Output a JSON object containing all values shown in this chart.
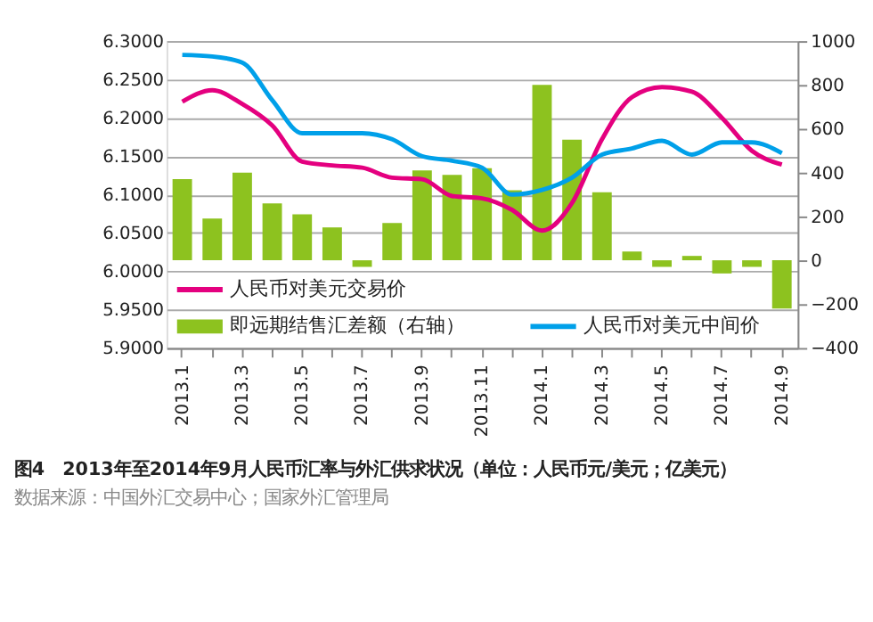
{
  "chart_data": {
    "type": "line",
    "title": "图4　2013年至2014年9月人民币汇率与外汇供求状况（单位：人民币元/美元；亿美元）",
    "annotations": [
      "数据来源：中国外汇交易中心；国家外汇管理局"
    ],
    "categories": [
      "2013.1",
      null,
      "2013.3",
      null,
      "2013.5",
      null,
      "2013.7",
      null,
      "2013.9",
      null,
      "2013.11",
      null,
      "2014.1",
      null,
      "2014.3",
      null,
      "2014.5",
      null,
      "2014.7",
      null,
      "2014.9"
    ],
    "series": [
      {
        "name": "人民币对美元交易价",
        "color": "#e4007f",
        "values": [
          6.221,
          6.236,
          6.218,
          6.19,
          6.143,
          6.138,
          6.135,
          6.122,
          6.12,
          6.098,
          6.095,
          6.08,
          6.053,
          6.089,
          6.172,
          6.227,
          6.24,
          6.234,
          6.2,
          6.157,
          6.139
        ]
      },
      {
        "name": "即远期结售汇差额（右轴）",
        "type": "bar",
        "axis": "y2",
        "color": "#8dc21f",
        "values": [
          370,
          190,
          400,
          260,
          210,
          150,
          -30,
          170,
          410,
          390,
          420,
          320,
          800,
          550,
          310,
          40,
          -30,
          20,
          -60,
          -30,
          -220
        ]
      },
      {
        "name": "人民币对美元中间价",
        "color": "#00a0e9",
        "values": [
          6.282,
          6.28,
          6.272,
          6.223,
          6.18,
          6.18,
          6.18,
          6.172,
          6.15,
          6.144,
          6.135,
          6.1,
          6.106,
          6.122,
          6.152,
          6.16,
          6.17,
          6.152,
          6.168,
          6.168,
          6.154
        ]
      }
    ],
    "ylim": [
      5.9,
      6.3
    ],
    "yticks": [
      {
        "value": 5.9,
        "label": "5.9000"
      },
      {
        "value": 5.95,
        "label": "5.9500"
      },
      {
        "value": 6.0,
        "label": "6.0000"
      },
      {
        "value": 6.05,
        "label": "6.0500"
      },
      {
        "value": 6.1,
        "label": "6.1000"
      },
      {
        "value": 6.15,
        "label": "6.1500"
      },
      {
        "value": 6.2,
        "label": "6.2000"
      },
      {
        "value": 6.25,
        "label": "6.2500"
      },
      {
        "value": 6.3,
        "label": "6.3000"
      }
    ],
    "y2lim": [
      -400,
      1000
    ],
    "y2ticks": [
      -400,
      -200,
      0,
      200,
      400,
      600,
      800,
      1000
    ],
    "grid": "y",
    "legend": "bottom"
  }
}
